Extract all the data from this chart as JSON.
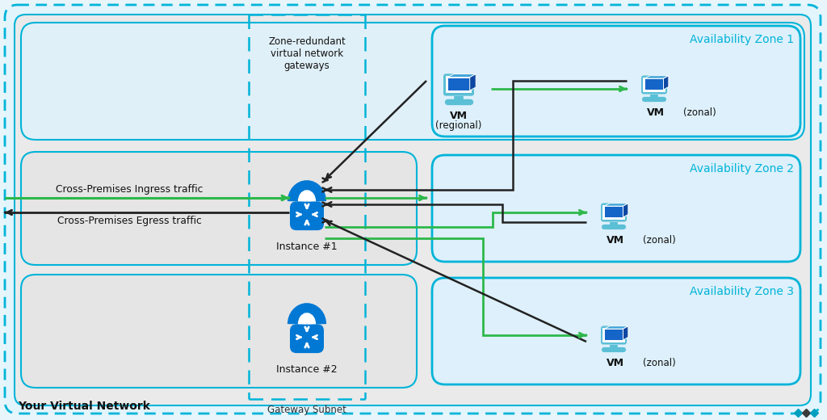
{
  "cyan": "#00b4d8",
  "blue": "#0078d4",
  "green": "#2db84b",
  "dark": "#222222",
  "light_gray": "#e8e8e8",
  "pale_blue": "#e8f6ff",
  "zone1_label": "Availability Zone 1",
  "zone2_label": "Availability Zone 2",
  "zone3_label": "Availability Zone 3",
  "gw_subnet_label": "Gateway Subnet",
  "vnet_label": "Your Virtual Network",
  "zone_redundant_label": "Zone-redundant\nvirtual network\ngateways",
  "ingress_label": "Cross-Premises Ingress traffic",
  "egress_label": "Cross-Premises Egress traffic",
  "instance1_label": "Instance #1",
  "instance2_label": "Instance #2"
}
